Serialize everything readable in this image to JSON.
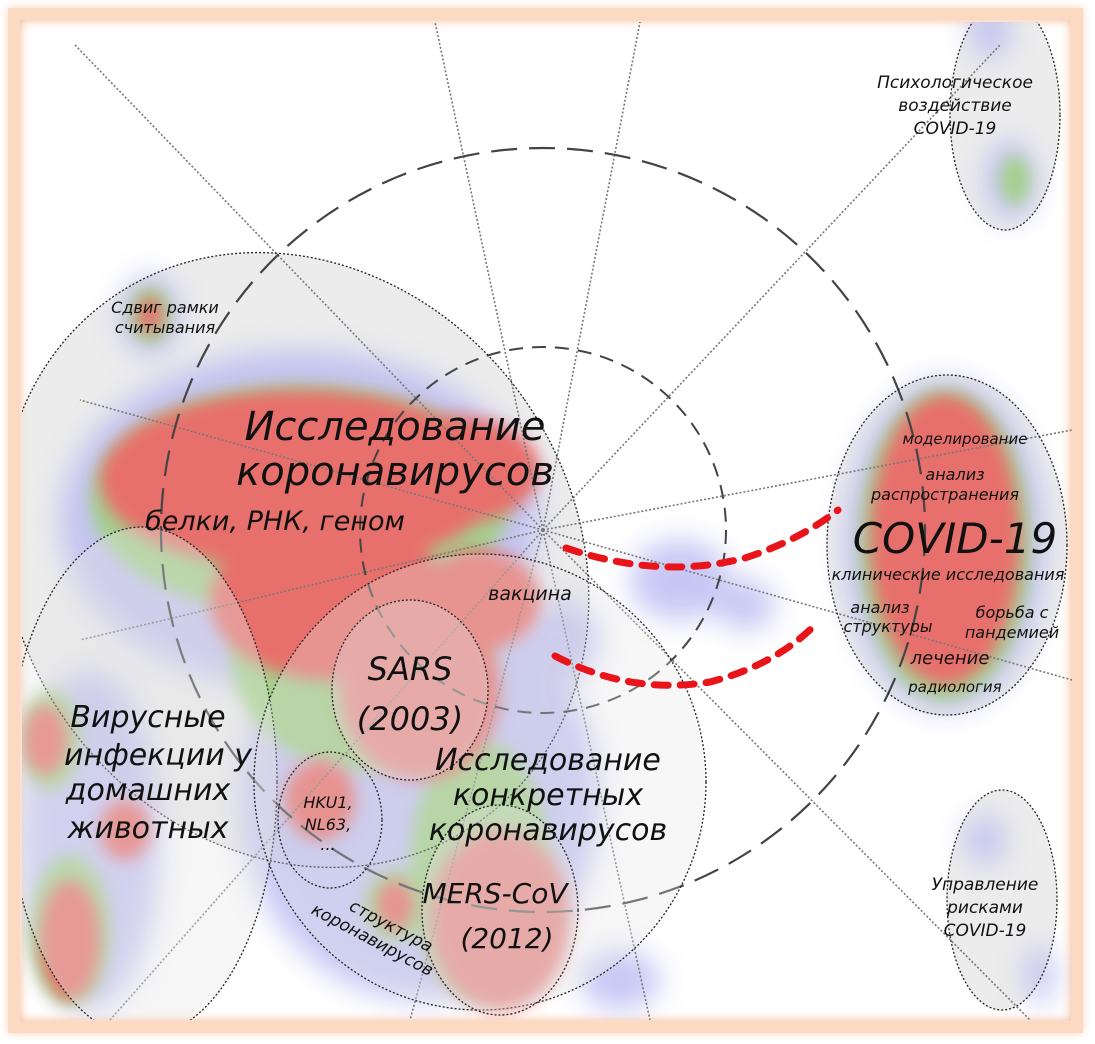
{
  "labels": {
    "main_cluster": [
      "Исследование",
      "коронавирусов"
    ],
    "main_sub": "белки, РНК, геном",
    "frameshift": [
      "Сдвиг рамки",
      "считывания"
    ],
    "vaccine": "вакцина",
    "sars": [
      "SARS",
      "(2003)"
    ],
    "specific": [
      "Исследование",
      "конкретных",
      "коронавирусов"
    ],
    "hku": [
      "HKU1,",
      "NL63,",
      "..."
    ],
    "mers": [
      "MERS-CoV",
      "(2012)"
    ],
    "structure": [
      "структура",
      "коронавирусов"
    ],
    "animals": [
      "Вирусные",
      "инфекции у",
      "домашних",
      "животных"
    ],
    "covid": "COVID-19",
    "covid_topics": {
      "modeling": "моделирование",
      "spread": [
        "анализ",
        "распространения"
      ],
      "clinical": "клинические исследования",
      "structure_analysis": [
        "анализ",
        "структуры"
      ],
      "pandemic": [
        "борьба с",
        "пандемией"
      ],
      "treatment": "лечение",
      "radiology": "радиология"
    },
    "psych": [
      "Психологическое",
      "воздействие",
      "COVID-19"
    ],
    "risk": [
      "Управление",
      "рисками",
      "COVID-19"
    ]
  },
  "colors": {
    "heat_high": "#e8706c",
    "heat_mid": "#9fd27a",
    "heat_low": "#b9b9f2",
    "link": "#e8141a",
    "frame": "#fbd9c2"
  }
}
